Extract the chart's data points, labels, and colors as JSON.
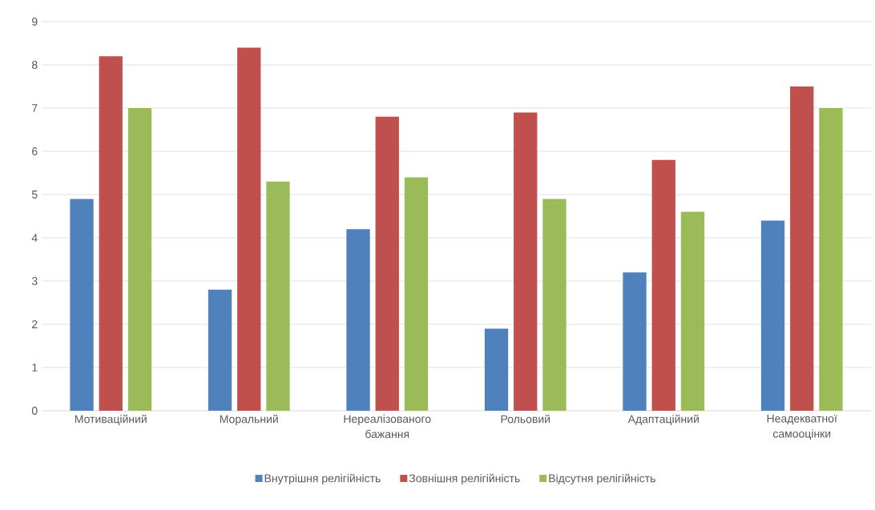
{
  "chart_data": {
    "type": "bar",
    "categories": [
      "Мотиваційний",
      "Моральний",
      "Нереалізованого бажання",
      "Рольовий",
      "Адаптаційний",
      "Неадекватної самооцінки"
    ],
    "series": [
      {
        "name": "Внутрішня релігійність",
        "color": "#4f81bd",
        "values": [
          4.9,
          2.8,
          4.2,
          1.9,
          3.2,
          4.4
        ]
      },
      {
        "name": "Зовнішня релігійність",
        "color": "#c0504d",
        "values": [
          8.2,
          8.4,
          6.8,
          6.9,
          5.8,
          7.5
        ]
      },
      {
        "name": "Відсутня релігійність",
        "color": "#9bbb59",
        "values": [
          7.0,
          5.3,
          5.4,
          4.9,
          4.6,
          7.0
        ]
      }
    ],
    "ylim": [
      0,
      9
    ],
    "yticks": [
      0,
      1,
      2,
      3,
      4,
      5,
      6,
      7,
      8,
      9
    ],
    "grid": "y",
    "legend": "bottom"
  }
}
